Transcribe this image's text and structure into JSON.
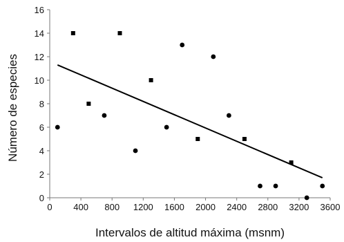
{
  "chart_data": {
    "type": "scatter",
    "title": "",
    "xlabel": "Intervalos de altitud máxima (msnm)",
    "ylabel": "Número de especies",
    "xlim": [
      0,
      3600
    ],
    "ylim": [
      0,
      16
    ],
    "xticks": [
      0,
      400,
      800,
      1200,
      1600,
      2000,
      2400,
      2800,
      3200,
      3600
    ],
    "yticks": [
      0,
      2,
      4,
      6,
      8,
      10,
      12,
      14,
      16
    ],
    "grid": false,
    "series": [
      {
        "marker": "square",
        "points": [
          {
            "x": 300,
            "y": 14
          },
          {
            "x": 500,
            "y": 8
          },
          {
            "x": 900,
            "y": 14
          },
          {
            "x": 1300,
            "y": 10
          },
          {
            "x": 1900,
            "y": 5
          },
          {
            "x": 2500,
            "y": 5
          },
          {
            "x": 3100,
            "y": 3
          }
        ]
      },
      {
        "marker": "circle",
        "points": [
          {
            "x": 100,
            "y": 6
          },
          {
            "x": 700,
            "y": 7
          },
          {
            "x": 1100,
            "y": 4
          },
          {
            "x": 1500,
            "y": 6
          },
          {
            "x": 1700,
            "y": 13
          },
          {
            "x": 2100,
            "y": 12
          },
          {
            "x": 2300,
            "y": 7
          },
          {
            "x": 2700,
            "y": 1
          },
          {
            "x": 2900,
            "y": 1
          },
          {
            "x": 3300,
            "y": 0
          },
          {
            "x": 3500,
            "y": 1
          }
        ]
      }
    ],
    "trendline": {
      "x": [
        100,
        3500
      ],
      "y": [
        11.3,
        1.7
      ]
    },
    "colors": {
      "marker": "#000000",
      "trendline": "#000000",
      "axis": "#777777"
    }
  }
}
